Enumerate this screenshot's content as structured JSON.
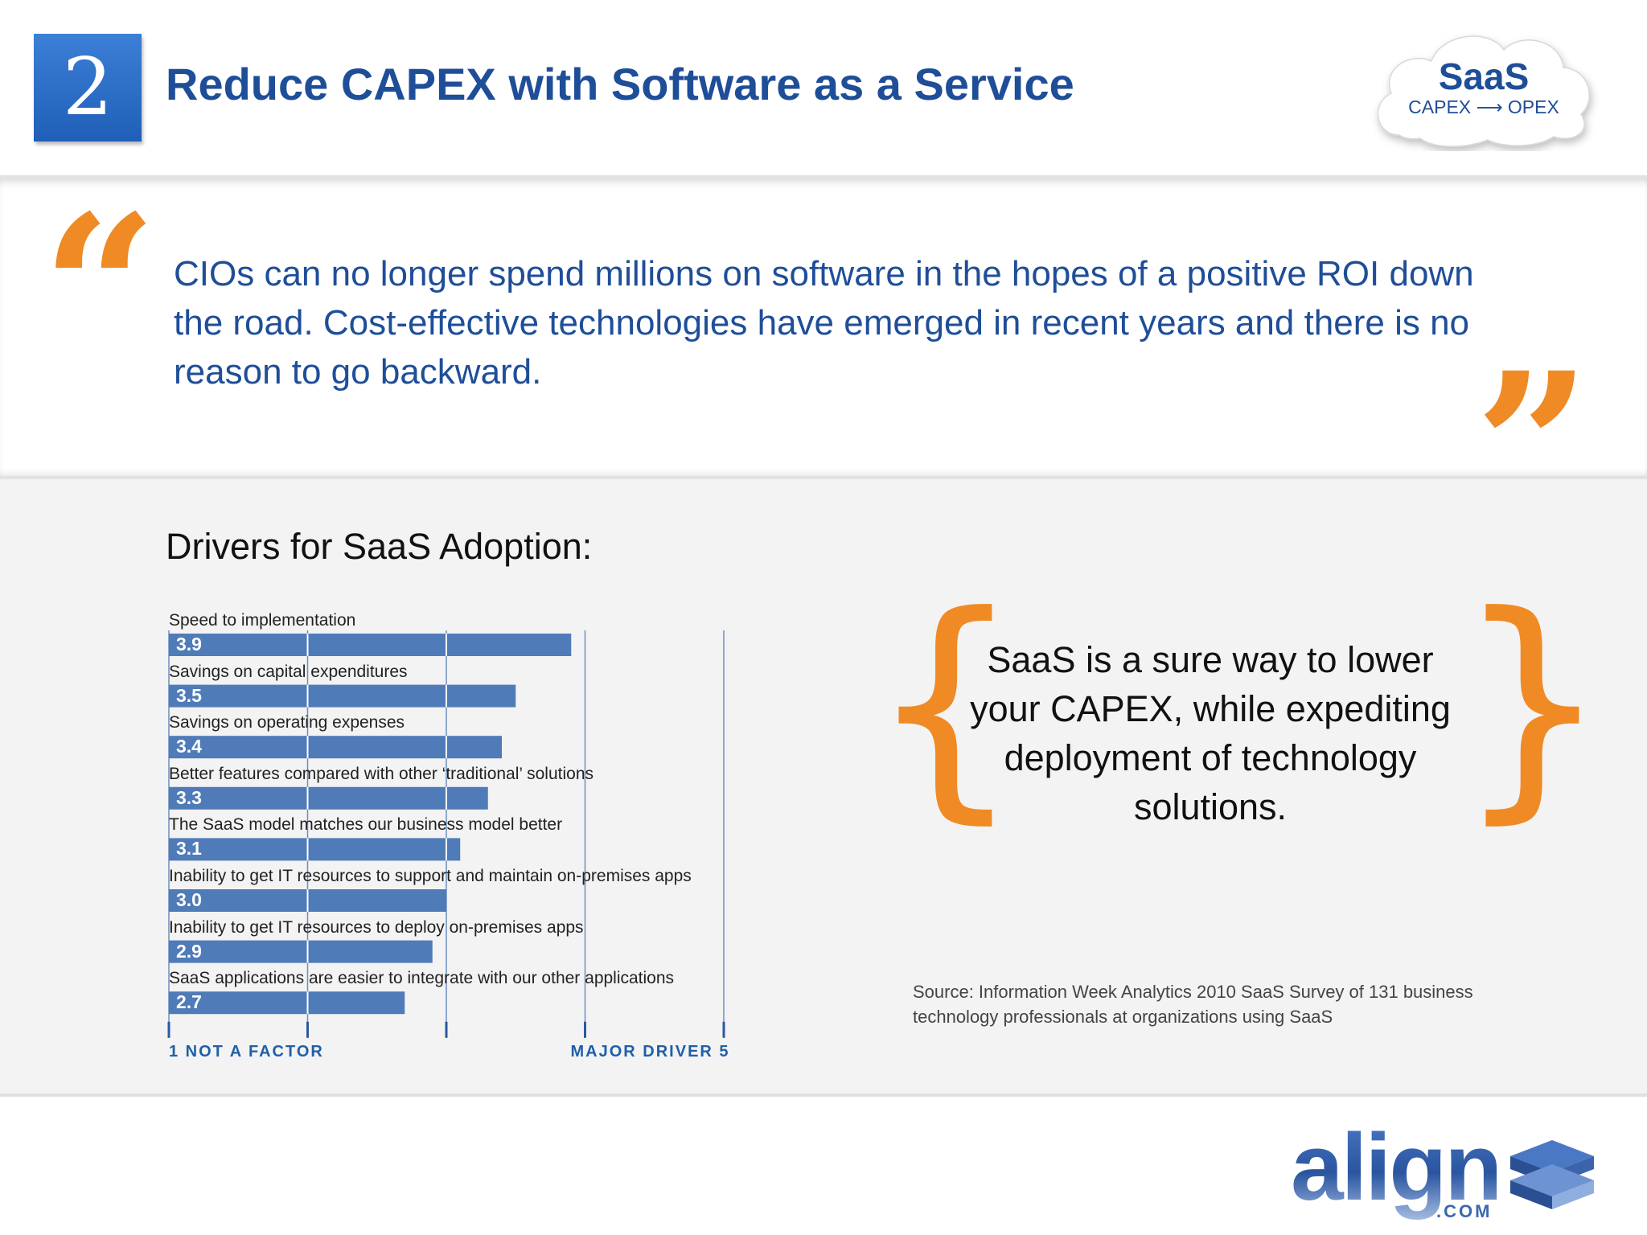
{
  "header": {
    "slide_number": "2",
    "title": "Reduce CAPEX with Software as a Service",
    "badge": {
      "title": "SaaS",
      "subtitle": "CAPEX ⟶ OPEX"
    }
  },
  "quote": {
    "open_mark": "“",
    "close_mark": "”",
    "text": "CIOs can no longer spend millions on software in the hopes of a positive ROI down the road. Cost-effective technologies have emerged in recent years and there is no reason to go backward."
  },
  "chart_heading": "Drivers for SaaS Adoption:",
  "chart_data": {
    "type": "bar",
    "orientation": "horizontal",
    "categories": [
      "Speed to implementation",
      "Savings on capital expenditures",
      "Savings on operating expenses",
      "Better features compared with other ‘traditional’ solutions",
      "The SaaS model matches our business model better",
      "Inability to get IT resources to support and maintain on-premises apps",
      "Inability to get IT resources to deploy on-premises apps",
      "SaaS applications are easier to integrate with our other applications"
    ],
    "values": [
      3.9,
      3.5,
      3.4,
      3.3,
      3.1,
      3.0,
      2.9,
      2.7
    ],
    "value_labels": [
      "3.9",
      "3.5",
      "3.4",
      "3.3",
      "3.1",
      "3.0",
      "2.9",
      "2.7"
    ],
    "xlim": [
      1,
      5
    ],
    "xlabel_left": "1 NOT A FACTOR",
    "xlabel_right": "MAJOR DRIVER  5",
    "bar_color": "#4f7bb8"
  },
  "callout": {
    "open_brace": "{",
    "close_brace": "}",
    "text": "SaaS is a sure way to lower your CAPEX, while expediting deployment of technology solutions."
  },
  "source": "Source: Information Week Analytics 2010 SaaS Survey of 131 business technology professionals at organizations using SaaS",
  "footer": {
    "logo_text": "align",
    "logo_suffix": ".COM"
  },
  "colors": {
    "accent_orange": "#f08a24",
    "brand_blue": "#1f4e99"
  }
}
